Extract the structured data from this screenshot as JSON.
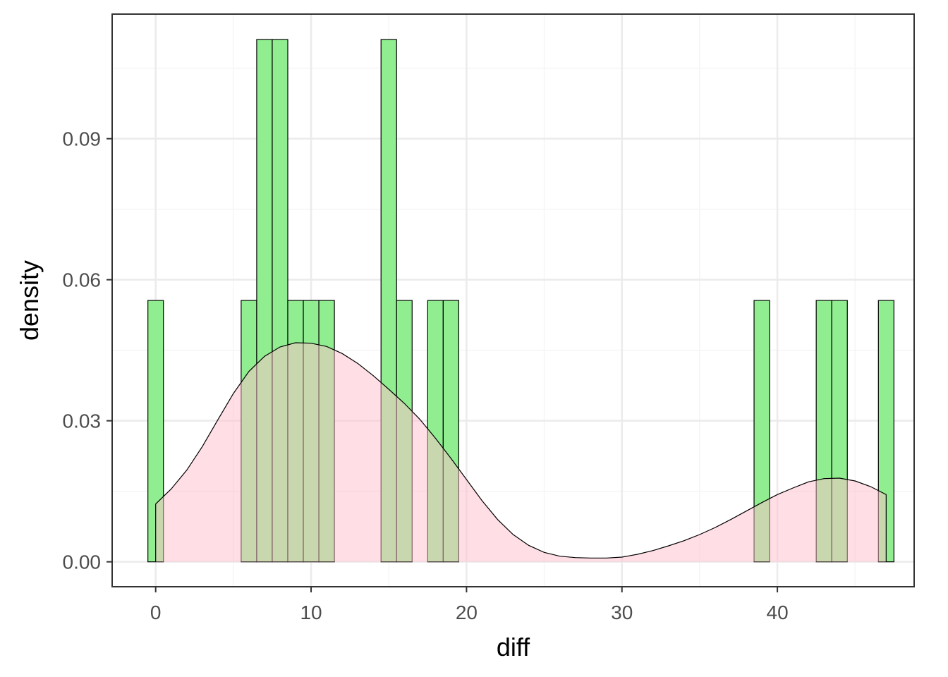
{
  "chart_data": {
    "type": "bar",
    "title": "",
    "xlabel": "diff",
    "ylabel": "density",
    "xlim": [
      -2.8,
      48.8
    ],
    "ylim": [
      -0.0053,
      0.1165
    ],
    "x_ticks": [
      0,
      10,
      20,
      30,
      40
    ],
    "x_tick_labels": [
      "0",
      "10",
      "20",
      "30",
      "40"
    ],
    "y_ticks": [
      0.0,
      0.03,
      0.06,
      0.09
    ],
    "y_tick_labels": [
      "0.00",
      "0.03",
      "0.06",
      "0.09"
    ],
    "grid": true,
    "legend": "none",
    "histogram": {
      "bin_width": 1,
      "bin_centers": [
        0,
        6,
        7,
        8,
        9,
        10,
        11,
        15,
        16,
        18,
        19,
        39,
        43,
        44,
        47
      ],
      "density": [
        0.0556,
        0.0556,
        0.1111,
        0.1111,
        0.0556,
        0.0556,
        0.0556,
        0.1111,
        0.0556,
        0.0556,
        0.0556,
        0.0556,
        0.0556,
        0.0556,
        0.0556
      ],
      "fill": "#90ee90",
      "stroke": "#000000"
    },
    "density_curve": {
      "x": [
        0,
        1,
        2,
        3,
        4,
        5,
        6,
        7,
        8,
        9,
        10,
        11,
        12,
        13,
        14,
        15,
        16,
        17,
        18,
        19,
        20,
        21,
        22,
        23,
        24,
        25,
        26,
        27,
        28,
        29,
        30,
        31,
        32,
        33,
        34,
        35,
        36,
        37,
        38,
        39,
        40,
        41,
        42,
        43,
        44,
        45,
        46,
        47
      ],
      "y": [
        0.0123,
        0.0155,
        0.0195,
        0.0245,
        0.0302,
        0.0358,
        0.0405,
        0.0437,
        0.0457,
        0.0466,
        0.0465,
        0.0458,
        0.0443,
        0.0422,
        0.0396,
        0.0367,
        0.0337,
        0.0303,
        0.0263,
        0.022,
        0.0175,
        0.013,
        0.009,
        0.0058,
        0.0035,
        0.002,
        0.0012,
        0.0009,
        0.0008,
        0.0008,
        0.001,
        0.0016,
        0.0024,
        0.0034,
        0.0045,
        0.0058,
        0.0073,
        0.009,
        0.0108,
        0.0126,
        0.0143,
        0.0157,
        0.017,
        0.0177,
        0.0178,
        0.0172,
        0.016,
        0.0143
      ],
      "fill": "#ffc0cb",
      "fill_opacity": 0.5,
      "stroke": "#000000"
    },
    "colors": {
      "background": "#ffffff",
      "panel_border": "#333333",
      "grid_major": "#ebebeb",
      "grid_minor": "#f5f5f5",
      "tick_text": "#4d4d4d",
      "title_text": "#000000"
    }
  }
}
